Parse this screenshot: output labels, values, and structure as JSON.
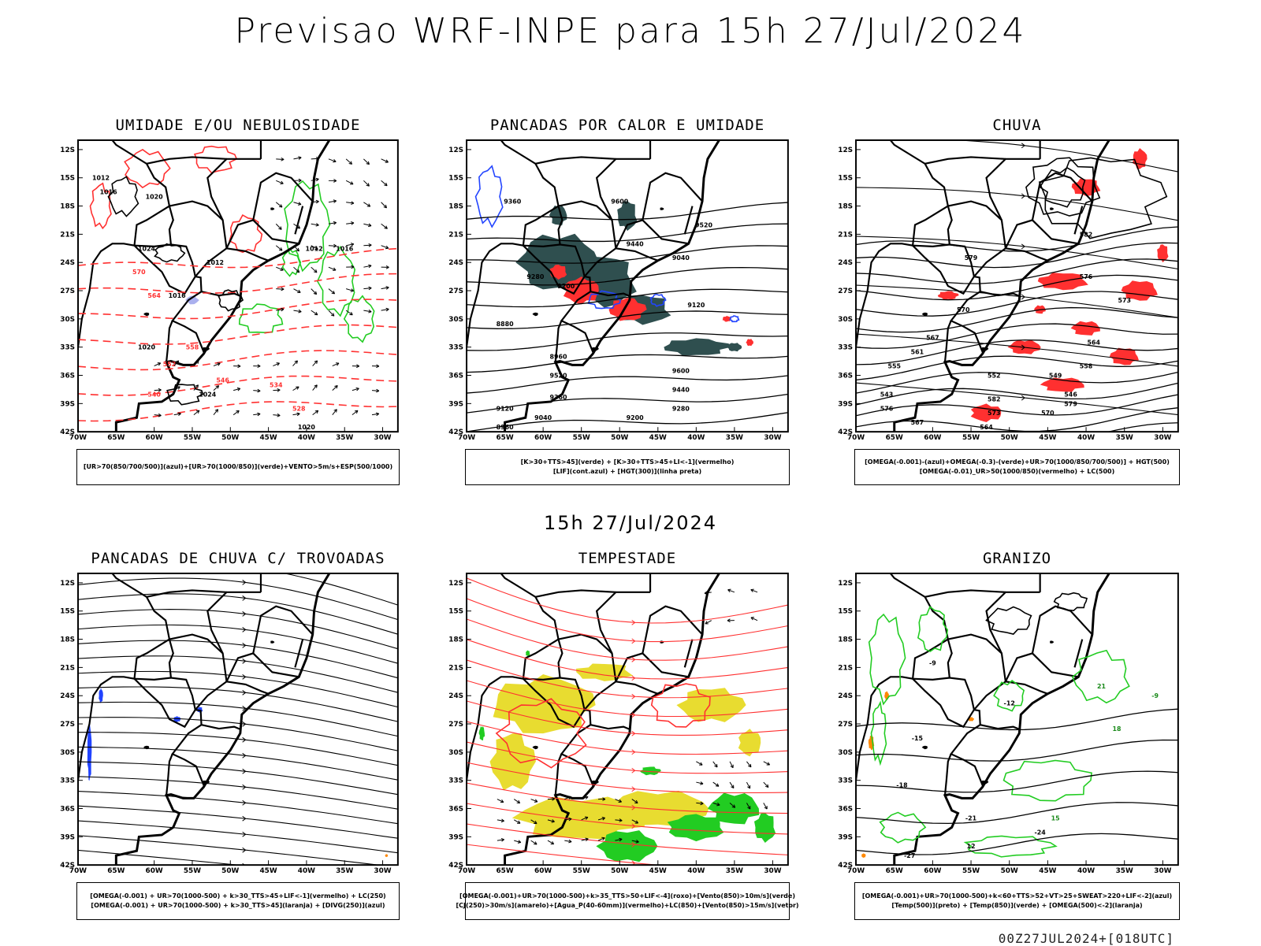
{
  "header": {
    "title": "Previsao WRF-INPE  para 15h 27/Jul/2024",
    "mid_title": "15h 27/Jul/2024",
    "footer_code": "00Z27JUL2024+[018UTC]"
  },
  "axes": {
    "lat_labels": [
      "12S",
      "15S",
      "18S",
      "21S",
      "24S",
      "27S",
      "30S",
      "33S",
      "36S",
      "39S",
      "42S"
    ],
    "lon_labels": [
      "70W",
      "65W",
      "60W",
      "55W",
      "50W",
      "45W",
      "40W",
      "35W",
      "30W"
    ]
  },
  "colors": {
    "red": "#ff3030",
    "green": "#22cc22",
    "blue": "#2244ff",
    "dark_teal": "#2f4f4f",
    "yellow": "#e8dc30",
    "orange": "#ff8800",
    "lilac": "#aab0ee"
  },
  "panels": [
    {
      "id": "umidade",
      "title": "UMIDADE E/OU NEBULOSIDADE",
      "legend": [
        "[UR>70(850/700/500)](azul)+[UR>70(1000/850)](verde)+VENTO>5m/s+ESP(500/1000)"
      ],
      "contour_labels": [
        "1012",
        "1016",
        "1020",
        "1024",
        "570",
        "564",
        "558",
        "552",
        "546",
        "540",
        "534",
        "528"
      ]
    },
    {
      "id": "pancadas-calor",
      "title": "PANCADAS POR CALOR E UMIDADE",
      "legend": [
        "[K>30+TTS>45](verde) + [K>30+TTS>45+LI<-1](vermelho)",
        "[LIF](cont.azul) + [HGT(300)](linha preta)"
      ],
      "contour_labels": [
        "9600",
        "9520",
        "9440",
        "9360",
        "9280",
        "9200",
        "9120",
        "9040",
        "8960",
        "8880"
      ]
    },
    {
      "id": "chuva",
      "title": "CHUVA",
      "legend": [
        "[OMEGA(-0.001)-(azul)+OMEGA(-0.3)-(verde)+UR>70(1000/850/700/500)] + HGT(500)",
        "[OMEGA(-0.01)_UR>50(1000/850)(vermelho) + LC(500)"
      ],
      "contour_labels": [
        "582",
        "579",
        "576",
        "573",
        "570",
        "567",
        "564",
        "561",
        "558",
        "555",
        "552",
        "549",
        "546",
        "543"
      ]
    },
    {
      "id": "pancadas-trovoadas",
      "title": "PANCADAS DE CHUVA C/ TROVOADAS",
      "legend": [
        "[OMEGA(-0.001) + UR>70(1000-500) + k>30_TTS>45+LIF<-1](vermelho) + LC(250)",
        "[OMEGA(-0.001) + UR>70(1000-500) + k>30_TTS>45](laranja) + [DIVG(250)](azul)"
      ],
      "contour_labels": []
    },
    {
      "id": "tempestade",
      "title": "TEMPESTADE",
      "legend": [
        "[OMEGA(-0.001)+UR>70(1000-500)+k>35_TTS>50+LIF<-4](roxo)+[Vento(850)>10m/s](verde)",
        "[CJ(250)>30m/s](amarelo)+[Agua_P(40-60mm)](vermelho)+LC(850)+[Vento(850)>15m/s](vetor)"
      ],
      "contour_labels": []
    },
    {
      "id": "granizo",
      "title": "GRANIZO",
      "legend": [
        "[OMEGA(-0.001)+UR>70(1000-500)+k<60+TTS>52+VT>25+SWEAT>220+LIF<-2](azul)",
        "[Temp(500)](preto) + [Temp(850)](verde) + [OMEGA(500)<-2](laranja)"
      ],
      "contour_labels": [
        "-9",
        "-12",
        "-15",
        "-18",
        "-21",
        "-24",
        "-27",
        "12",
        "15",
        "18",
        "21"
      ]
    }
  ]
}
